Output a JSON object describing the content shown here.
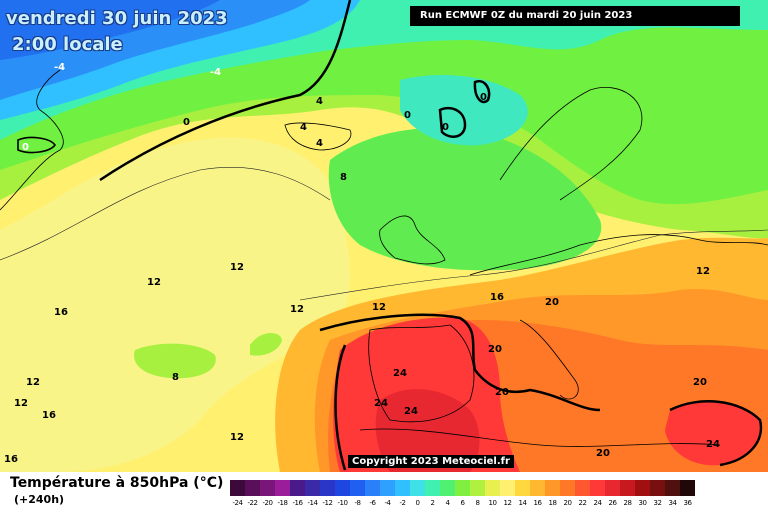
{
  "header": {
    "date": "vendredi 30 juin 2023",
    "local_time": "2:00 locale",
    "run": "Run ECMWF 0Z du mardi 20 juin 2023"
  },
  "copyright": "Copyright 2023 Meteociel.fr",
  "footer": {
    "title": "Température à 850hPa (°C)",
    "subtitle": "(+240h)"
  },
  "scale": {
    "labels": [
      "-24",
      "-22",
      "-20",
      "-18",
      "-16",
      "-14",
      "-12",
      "-10",
      "-8",
      "-6",
      "-4",
      "-2",
      "0",
      "2",
      "4",
      "6",
      "8",
      "10",
      "12",
      "14",
      "16",
      "18",
      "20",
      "22",
      "24",
      "26",
      "28",
      "30",
      "32",
      "34",
      "36"
    ],
    "colors": [
      "#3b0a3b",
      "#5a0f5a",
      "#7a167a",
      "#9a1e9a",
      "#4b1a8a",
      "#3a2aa8",
      "#2a36c8",
      "#1e46e0",
      "#2060f0",
      "#2a80f8",
      "#30a0ff",
      "#30c0ff",
      "#40e0e8",
      "#40f0b0",
      "#50f070",
      "#80f040",
      "#b0f040",
      "#e8f050",
      "#fff070",
      "#ffd840",
      "#ffb830",
      "#ff9828",
      "#ff7828",
      "#ff5830",
      "#ff3838",
      "#e82830",
      "#c81820",
      "#a01010",
      "#781010",
      "#501010",
      "#200808"
    ]
  },
  "isotherm_labels": [
    "-4",
    "-4",
    "0",
    "0",
    "0",
    "0",
    "0",
    "4",
    "4",
    "4",
    "8",
    "8",
    "12",
    "12",
    "12",
    "12",
    "12",
    "12",
    "12",
    "12",
    "16",
    "16",
    "16",
    "16",
    "20",
    "20",
    "20",
    "20",
    "20",
    "24",
    "24",
    "24",
    "24"
  ]
}
